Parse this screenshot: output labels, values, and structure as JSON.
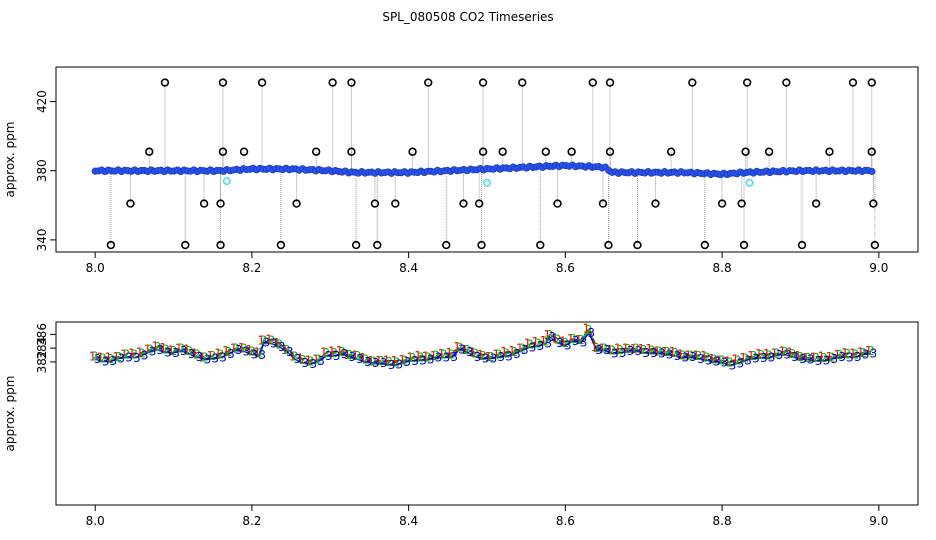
{
  "title": "SPL_080508  CO2 Timeseries",
  "colors": {
    "series1": "#ff0000",
    "series2": "#00bb00",
    "series3": "#0000cc",
    "points": "#2255ee",
    "outlier": "#000000",
    "cyan": "#40e0e0",
    "drop": "#999999"
  },
  "chart_data": [
    {
      "type": "scatter",
      "title": "",
      "ylabel": "approx. ppm",
      "xlim": [
        8.0,
        9.0
      ],
      "ylim": [
        333,
        440
      ],
      "xticks": [
        "8.0",
        "8.2",
        "8.4",
        "8.6",
        "8.8",
        "9.0"
      ],
      "yticks": [
        "340",
        "380",
        "420"
      ],
      "baseline": [
        [
          8.0,
          380
        ],
        [
          8.1,
          380
        ],
        [
          8.16,
          380
        ],
        [
          8.2,
          381
        ],
        [
          8.25,
          381
        ],
        [
          8.3,
          380
        ],
        [
          8.33,
          379
        ],
        [
          8.4,
          379
        ],
        [
          8.45,
          380
        ],
        [
          8.5,
          381
        ],
        [
          8.55,
          382
        ],
        [
          8.6,
          383
        ],
        [
          8.65,
          382
        ],
        [
          8.66,
          379
        ],
        [
          8.75,
          379
        ],
        [
          8.8,
          378
        ],
        [
          8.83,
          379
        ],
        [
          8.9,
          380
        ],
        [
          8.99,
          380
        ]
      ],
      "outliers_high": [
        8.089,
        8.163,
        8.213,
        8.303,
        8.327,
        8.425,
        8.495,
        8.545,
        8.635,
        8.657,
        8.762,
        8.832,
        8.882,
        8.967,
        8.991
      ],
      "outliers_mid_high": [
        8.069,
        8.163,
        8.19,
        8.282,
        8.327,
        8.405,
        8.495,
        8.52,
        8.575,
        8.608,
        8.657,
        8.735,
        8.83,
        8.86,
        8.937,
        8.991
      ],
      "outliers_low": [
        8.045,
        8.139,
        8.16,
        8.257,
        8.357,
        8.383,
        8.47,
        8.49,
        8.59,
        8.648,
        8.715,
        8.8,
        8.825,
        8.92,
        8.993
      ],
      "outliers_bottom": [
        8.02,
        8.115,
        8.16,
        8.237,
        8.333,
        8.36,
        8.448,
        8.493,
        8.568,
        8.655,
        8.692,
        8.778,
        8.828,
        8.902,
        8.995
      ],
      "cyan_points": [
        [
          8.168,
          374
        ],
        [
          8.5,
          373
        ],
        [
          8.835,
          373
        ]
      ]
    },
    {
      "type": "line",
      "title": "",
      "ylabel": "approx. ppm",
      "xlim": [
        8.0,
        9.0
      ],
      "ylim": [
        361.2,
        387.8
      ],
      "xticks": [
        "8.0",
        "8.2",
        "8.4",
        "8.6",
        "8.8",
        "9.0"
      ],
      "yticks": [
        "382",
        "384",
        "386"
      ],
      "series": [
        {
          "marker": "1",
          "offset": 0.25
        },
        {
          "marker": "2",
          "offset": 0.15
        },
        {
          "marker": "3",
          "offset": -0.2
        }
      ],
      "x": [
        8.0,
        8.01,
        8.02,
        8.03,
        8.04,
        8.05,
        8.06,
        8.07,
        8.08,
        8.09,
        8.1,
        8.11,
        8.12,
        8.13,
        8.14,
        8.15,
        8.16,
        8.17,
        8.18,
        8.19,
        8.2,
        8.21,
        8.215,
        8.225,
        8.235,
        8.245,
        8.255,
        8.265,
        8.275,
        8.285,
        8.295,
        8.305,
        8.315,
        8.325,
        8.335,
        8.345,
        8.355,
        8.365,
        8.375,
        8.385,
        8.395,
        8.405,
        8.415,
        8.425,
        8.435,
        8.445,
        8.455,
        8.465,
        8.475,
        8.485,
        8.495,
        8.505,
        8.515,
        8.525,
        8.535,
        8.545,
        8.555,
        8.565,
        8.575,
        8.58,
        8.59,
        8.6,
        8.61,
        8.62,
        8.63,
        8.64,
        8.65,
        8.66,
        8.67,
        8.68,
        8.69,
        8.7,
        8.71,
        8.72,
        8.73,
        8.74,
        8.75,
        8.76,
        8.77,
        8.78,
        8.79,
        8.8,
        8.81,
        8.82,
        8.83,
        8.84,
        8.85,
        8.86,
        8.87,
        8.88,
        8.89,
        8.9,
        8.91,
        8.92,
        8.93,
        8.94,
        8.95,
        8.96,
        8.97,
        8.98,
        8.99
      ],
      "values": [
        382.5,
        382.3,
        382.4,
        382.6,
        382.8,
        382.9,
        383.2,
        383.6,
        383.9,
        383.7,
        383.5,
        383.7,
        383.4,
        383.0,
        382.5,
        382.6,
        382.9,
        383.4,
        383.8,
        383.7,
        383.4,
        383.2,
        384.9,
        384.9,
        384.5,
        383.6,
        382.5,
        382.1,
        382.0,
        382.2,
        383.0,
        383.2,
        383.4,
        382.8,
        382.6,
        382.3,
        382.0,
        381.9,
        381.8,
        381.9,
        382.1,
        382.3,
        382.5,
        382.6,
        382.7,
        382.8,
        383.0,
        384.0,
        383.5,
        383.0,
        382.8,
        382.6,
        382.8,
        383.1,
        383.4,
        383.8,
        384.3,
        384.6,
        384.9,
        385.7,
        385.0,
        384.7,
        385.2,
        384.9,
        386.5,
        384.0,
        383.8,
        383.4,
        383.6,
        383.8,
        383.7,
        383.5,
        383.6,
        383.4,
        383.2,
        383.1,
        382.9,
        382.8,
        382.6,
        382.5,
        382.3,
        382.0,
        381.7,
        382.1,
        382.4,
        382.6,
        382.8,
        382.9,
        383.1,
        383.2,
        383.0,
        382.7,
        382.4,
        382.3,
        382.5,
        382.6,
        382.8,
        382.9,
        383.0,
        383.2,
        383.3
      ]
    }
  ]
}
